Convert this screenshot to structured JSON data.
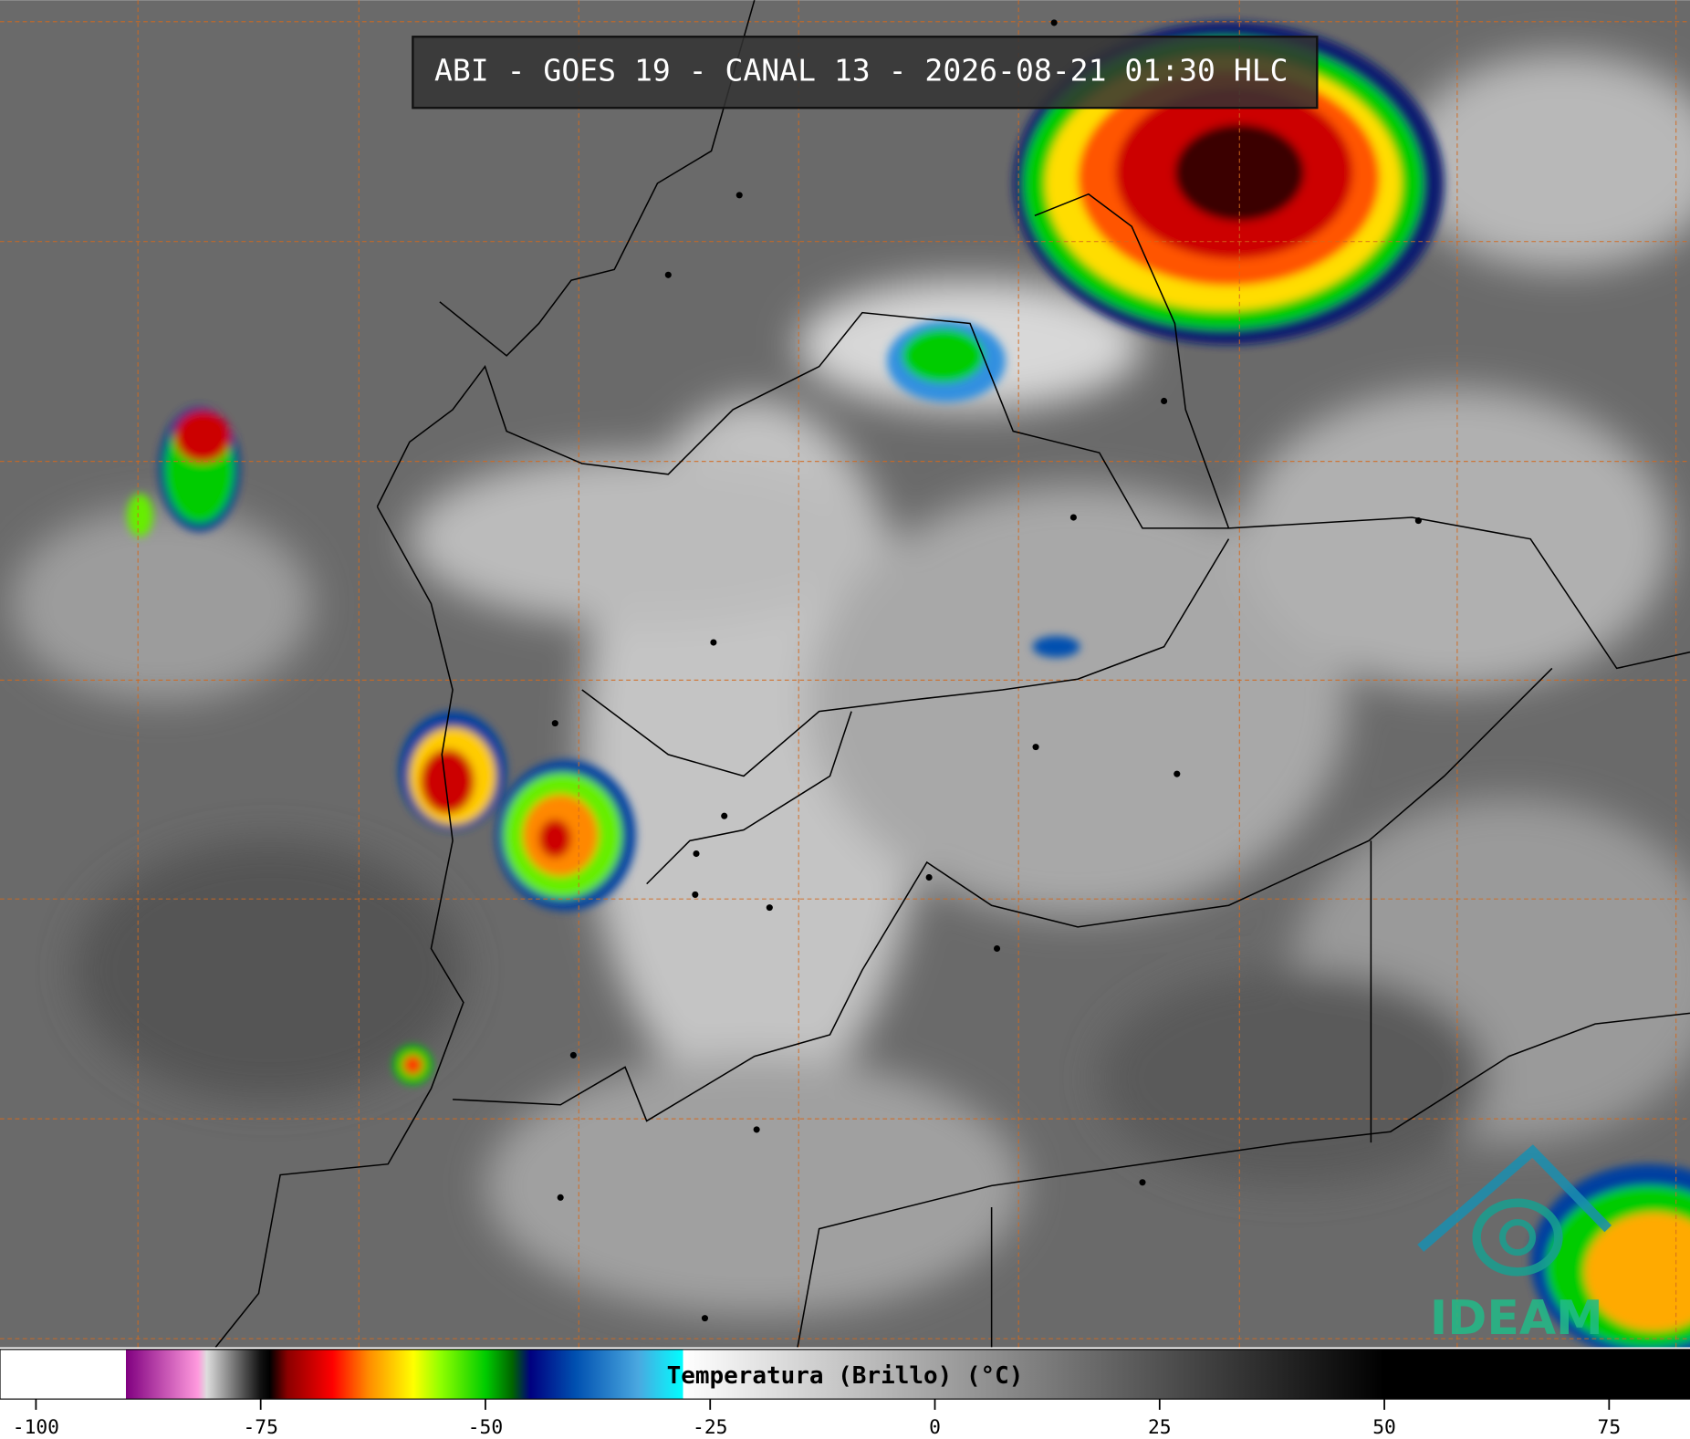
{
  "header": {
    "title": "ABI - GOES 19 - CANAL 13 - 2026-08-21 01:30 HLC"
  },
  "logo": {
    "text": "IDEAM"
  },
  "colorbar": {
    "label": "Temperatura (Brillo) (°C)",
    "lim": [
      -104,
      84
    ],
    "ticks": [
      -100,
      -75,
      -50,
      -25,
      0,
      25,
      50,
      75
    ],
    "stops": [
      {
        "value": -104,
        "color": "#ffffff"
      },
      {
        "value": -90,
        "color": "#ffffff"
      },
      {
        "value": -90,
        "color": "#800080"
      },
      {
        "value": -82,
        "color": "#ff99dd"
      },
      {
        "value": -81,
        "color": "#dddddd"
      },
      {
        "value": -75,
        "color": "#111111"
      },
      {
        "value": -74,
        "color": "#000000"
      },
      {
        "value": -72,
        "color": "#8b0000"
      },
      {
        "value": -67,
        "color": "#ff0000"
      },
      {
        "value": -63,
        "color": "#ff8c00"
      },
      {
        "value": -58,
        "color": "#ffff00"
      },
      {
        "value": -55,
        "color": "#90ff00"
      },
      {
        "value": -50,
        "color": "#00cc00"
      },
      {
        "value": -47,
        "color": "#006400"
      },
      {
        "value": -45,
        "color": "#000080"
      },
      {
        "value": -40,
        "color": "#0050b0"
      },
      {
        "value": -33,
        "color": "#4aa8e0"
      },
      {
        "value": -28,
        "color": "#00ffff"
      },
      {
        "value": -28,
        "color": "#ffffff"
      },
      {
        "value": 50,
        "color": "#000000"
      },
      {
        "value": 84,
        "color": "#000000"
      }
    ]
  }
}
